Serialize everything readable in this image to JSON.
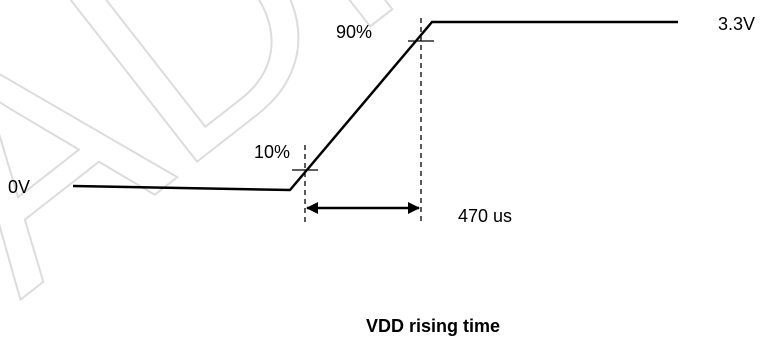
{
  "watermark": {
    "text": "ADI"
  },
  "diagram": {
    "signal": "VDD",
    "low_level_label": "0V",
    "high_level_label": "3.3V",
    "lower_threshold_label": "10%",
    "upper_threshold_label": "90%",
    "rise_time_label": "470 us",
    "caption": "VDD rising time"
  }
}
